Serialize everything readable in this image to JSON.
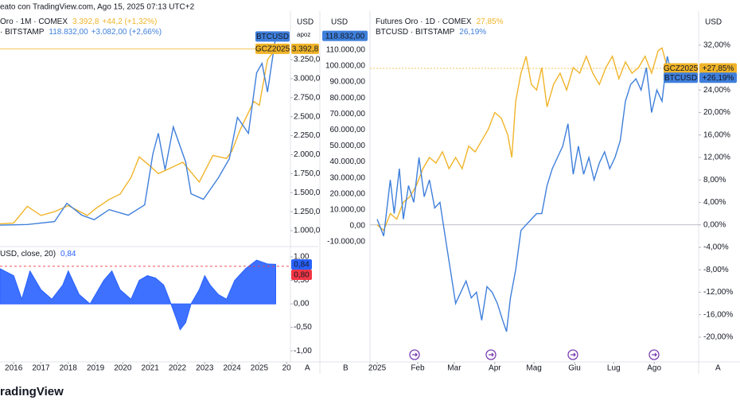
{
  "header": {
    "created": "eato con TradingView.com, Ago 15, 2025 07:13 UTC+2",
    "footer": "radingView"
  },
  "chart_data": [
    {
      "type": "line",
      "y_unit": "USD",
      "y2_unit": "apoz",
      "corner": "A",
      "xlim": [
        2015.5,
        2026.14
      ],
      "xticks": [
        2016,
        2017,
        2018,
        2019,
        2020,
        2021,
        2022,
        2023,
        2024,
        2025,
        {
          "value": 2026,
          "label": "20"
        }
      ],
      "ylim": [
        843,
        3826
      ],
      "yticks": [
        {
          "value": 1000,
          "label": "1.000,0"
        },
        {
          "value": 1250,
          "label": "1.250,0"
        },
        {
          "value": 1500,
          "label": "1.500,0"
        },
        {
          "value": 1750,
          "label": "1.750,0"
        },
        {
          "value": 2000,
          "label": "2.000,0"
        },
        {
          "value": 2250,
          "label": "2.250,0"
        },
        {
          "value": 2500,
          "label": "2.500,0"
        },
        {
          "value": 2750,
          "label": "2.750,0"
        },
        {
          "value": 3000,
          "label": "3.000,0"
        },
        {
          "value": 3250,
          "label": "3.250,0"
        }
      ],
      "y2lim": [
        -10700,
        131800
      ],
      "series": [
        {
          "name": "Oro · 1M · COMEX",
          "quote": "3.392,8",
          "change": "+44,2 (+1,32%)",
          "badge": "GCZ2025",
          "axis_label": "3.392,8",
          "price_line": true,
          "color": "#f0b429",
          "x": [
            2015.5,
            2016.0,
            2016.5,
            2017.0,
            2017.5,
            2018.0,
            2018.7,
            2019.0,
            2019.5,
            2019.9,
            2020.3,
            2020.6,
            2021.0,
            2021.3,
            2021.6,
            2022.2,
            2022.8,
            2023.3,
            2023.8,
            2024.0,
            2024.3,
            2024.8,
            2025.0,
            2025.3,
            2025.6
          ],
          "values": [
            1090,
            1100,
            1320,
            1200,
            1250,
            1330,
            1200,
            1290,
            1410,
            1480,
            1700,
            1970,
            1850,
            1750,
            1800,
            1900,
            1640,
            1990,
            1950,
            2050,
            2330,
            2700,
            2650,
            3250,
            3392.8
          ]
        },
        {
          "name": "· BITSTAMP",
          "quote": "118.832,00",
          "change": "+3.082,00 (+2,66%)",
          "badge": "BTCUSD",
          "axis": "y2",
          "color": "#3f7fdb",
          "x": [
            2015.5,
            2016.5,
            2017.5,
            2017.95,
            2018.5,
            2018.95,
            2019.5,
            2020.2,
            2020.8,
            2021.1,
            2021.3,
            2021.55,
            2021.85,
            2022.3,
            2022.5,
            2022.95,
            2023.5,
            2023.9,
            2024.2,
            2024.6,
            2024.9,
            2025.1,
            2025.3,
            2025.6
          ],
          "values": [
            250,
            650,
            2500,
            14000,
            6500,
            3700,
            10000,
            6500,
            13000,
            45000,
            58000,
            35000,
            62000,
            40000,
            20000,
            16500,
            30000,
            42000,
            68000,
            58000,
            96000,
            102000,
            84000,
            118832
          ]
        }
      ]
    },
    {
      "type": "area",
      "title": "USD, close, 20)",
      "last_label": "0,84",
      "color": "#2962ff",
      "threshold": 0.8,
      "threshold_label": "0,80",
      "threshold_color": "#f23645",
      "xlim": [
        2015.5,
        2026.14
      ],
      "ylim": [
        -1.15,
        1.22
      ],
      "yticks": [
        {
          "value": 1,
          "label": "1,00"
        },
        {
          "value": 0.5,
          "label": "0,50"
        },
        {
          "value": 0,
          "label": "0,00"
        },
        {
          "value": -0.5,
          "label": "-0,50"
        },
        {
          "value": -1,
          "label": "-1,00"
        }
      ],
      "x": [
        2015.5,
        2016.0,
        2016.3,
        2016.6,
        2017.0,
        2017.4,
        2017.8,
        2018.0,
        2018.4,
        2018.8,
        2019.3,
        2019.6,
        2019.9,
        2020.3,
        2020.6,
        2020.9,
        2021.2,
        2021.5,
        2021.7,
        2021.95,
        2022.1,
        2022.3,
        2022.5,
        2022.8,
        2023.0,
        2023.2,
        2023.5,
        2023.8,
        2024.1,
        2024.5,
        2024.9,
        2025.3,
        2025.6
      ],
      "values": [
        0.75,
        0.6,
        0.1,
        0.7,
        0.3,
        0.1,
        0.4,
        0.7,
        0.2,
        0.0,
        0.5,
        0.7,
        0.3,
        0.1,
        0.5,
        0.6,
        0.55,
        0.4,
        0.1,
        -0.3,
        -0.55,
        -0.4,
        0.0,
        0.3,
        0.6,
        0.4,
        0.2,
        0.1,
        0.5,
        0.75,
        0.93,
        0.85,
        0.84
      ]
    },
    {
      "type": "line",
      "y_unit": "USD",
      "y2_unit": "USD",
      "corner": "A",
      "corner2": "B",
      "xlim": [
        -5.5,
        246
      ],
      "xticks": [
        {
          "value": 0,
          "label": "2025"
        },
        {
          "value": 31,
          "label": "Feb"
        },
        {
          "value": 59,
          "label": "Mar"
        },
        {
          "value": 90,
          "label": "Apr"
        },
        {
          "value": 120,
          "label": "Mag"
        },
        {
          "value": 151,
          "label": "Giu"
        },
        {
          "value": 181,
          "label": "Lug"
        },
        {
          "value": 212,
          "label": "Ago"
        }
      ],
      "ylim": [
        -24.4,
        37.2
      ],
      "yticks": [
        {
          "value": 32,
          "label": "32,00%"
        },
        {
          "value": 24,
          "label": "24,00%"
        },
        {
          "value": 20,
          "label": "20,00%"
        },
        {
          "value": 16,
          "label": "16,00%"
        },
        {
          "value": 12,
          "label": "12,00%"
        },
        {
          "value": 8,
          "label": "8,00%"
        },
        {
          "value": 4,
          "label": "4,00%"
        },
        {
          "value": 0,
          "label": "0,00%"
        },
        {
          "value": -4,
          "label": "-4,00%"
        },
        {
          "value": -8,
          "label": "-8,00%"
        },
        {
          "value": -12,
          "label": "-12,00%"
        },
        {
          "value": -16,
          "label": "-16,00%"
        },
        {
          "value": -20,
          "label": "-20,00%"
        }
      ],
      "y2lim": [
        -85070,
        131343
      ],
      "y2ticks": [
        {
          "value": 110000,
          "label": "110.000,00"
        },
        {
          "value": 100000,
          "label": "100.000,00"
        },
        {
          "value": 90000,
          "label": "90.000,00"
        },
        {
          "value": 80000,
          "label": "80.000,00"
        },
        {
          "value": 70000,
          "label": "70.000,00"
        },
        {
          "value": 60000,
          "label": "60.000,00"
        },
        {
          "value": 50000,
          "label": "50.000,00"
        },
        {
          "value": 40000,
          "label": "40.000,00"
        },
        {
          "value": 30000,
          "label": "30.000,00"
        },
        {
          "value": 20000,
          "label": "20.000,00"
        },
        {
          "value": 10000,
          "label": "10.000,00"
        },
        {
          "value": 0,
          "label": "0,00"
        },
        {
          "value": -10000,
          "label": "-10.000,00"
        }
      ],
      "series": [
        {
          "name": "Futures Oro · 1D · COMEX",
          "quote": "27,85%",
          "badge": "GCZ2025",
          "axis_label": "+27,85%",
          "price_line": true,
          "color": "#f0b429",
          "x": [
            0,
            5,
            10,
            15,
            20,
            25,
            30,
            35,
            40,
            45,
            50,
            55,
            60,
            65,
            70,
            75,
            80,
            85,
            90,
            95,
            100,
            103,
            106,
            110,
            114,
            118,
            122,
            126,
            130,
            135,
            140,
            145,
            150,
            155,
            160,
            165,
            170,
            175,
            180,
            185,
            190,
            195,
            200,
            205,
            210,
            215,
            218,
            222,
            226
          ],
          "values": [
            0,
            -1,
            2,
            1,
            4,
            5,
            7,
            10,
            12,
            11,
            13,
            10,
            12,
            10,
            14,
            13,
            15,
            17,
            20,
            19,
            16,
            12,
            22,
            27,
            30,
            25,
            24,
            28,
            21,
            25,
            27,
            24,
            28,
            27,
            30,
            27,
            25,
            28,
            30,
            26,
            29,
            27,
            28,
            30,
            27,
            31,
            31.5,
            28,
            27.85
          ]
        },
        {
          "name": "BTCUSD · BITSTAMP",
          "quote": "26,19%",
          "badge": "BTCUSD",
          "axis_label": "+26,19%",
          "price": 118832,
          "price_label": "118.832,00",
          "color": "#3f7fdb",
          "x": [
            0,
            5,
            10,
            13,
            17,
            20,
            24,
            28,
            32,
            36,
            40,
            44,
            48,
            52,
            56,
            60,
            64,
            68,
            72,
            76,
            80,
            84,
            88,
            92,
            96,
            99,
            102,
            106,
            110,
            114,
            118,
            122,
            126,
            130,
            134,
            138,
            142,
            146,
            150,
            154,
            158,
            162,
            166,
            170,
            174,
            178,
            182,
            186,
            190,
            194,
            198,
            202,
            206,
            210,
            214,
            218,
            222,
            226
          ],
          "values": [
            1,
            -2,
            8,
            2,
            10,
            1,
            7,
            4,
            12,
            5,
            8,
            3,
            4,
            -2,
            -8,
            -14,
            -12,
            -10,
            -13,
            -12,
            -17,
            -11,
            -12,
            -14,
            -17,
            -19,
            -13,
            -8,
            -1,
            0,
            1,
            2,
            2,
            7,
            10,
            12,
            14,
            18,
            9,
            14,
            9,
            12,
            8,
            11,
            13,
            10,
            12,
            15,
            22,
            25,
            26,
            24,
            28,
            20,
            24,
            22,
            30,
            26.19
          ]
        }
      ]
    }
  ]
}
